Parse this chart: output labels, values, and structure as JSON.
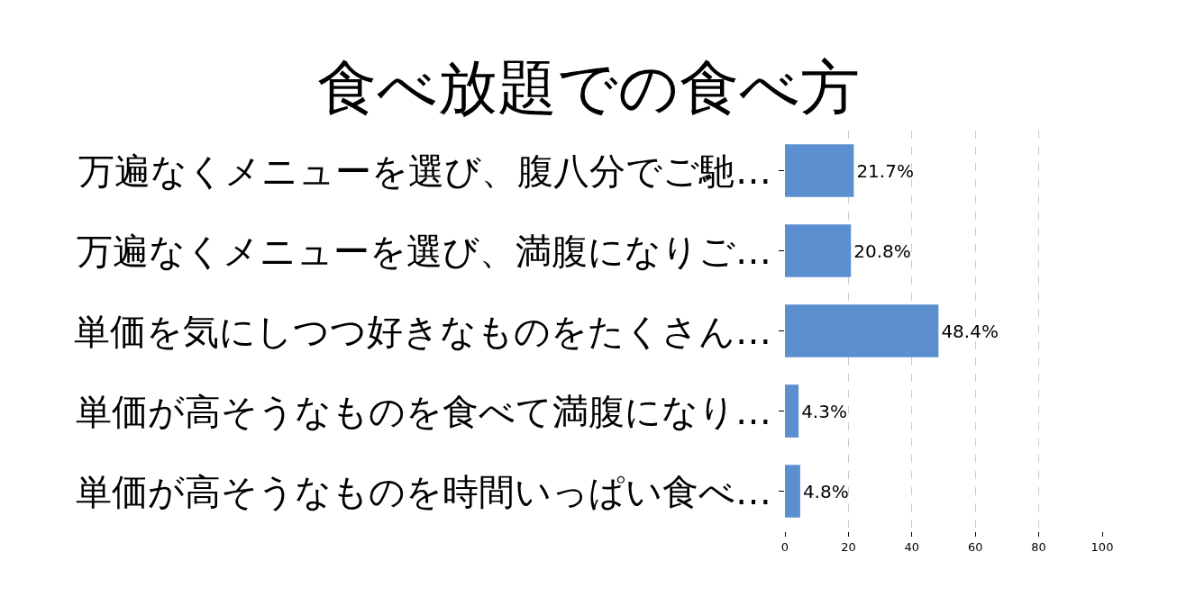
{
  "chart_data": {
    "type": "bar",
    "orientation": "horizontal",
    "title": "食べ放題での食べ方",
    "categories": [
      "万遍なくメニューを選び、腹八分でご馳…",
      "万遍なくメニューを選び、満腹になりご…",
      "単価を気にしつつ好きなものをたくさん…",
      "単価が高そうなものを食べて満腹になり…",
      "単価が高そうなものを時間いっぱい食べ…"
    ],
    "values": [
      21.7,
      20.8,
      48.4,
      4.3,
      4.8
    ],
    "value_labels": [
      "21.7%",
      "20.8%",
      "48.4%",
      "4.3%",
      "4.8%"
    ],
    "color": "#5b8fd0",
    "xlim": [
      0,
      100
    ],
    "xticks": [
      0,
      20,
      40,
      60,
      80,
      100
    ],
    "grid": "x"
  }
}
